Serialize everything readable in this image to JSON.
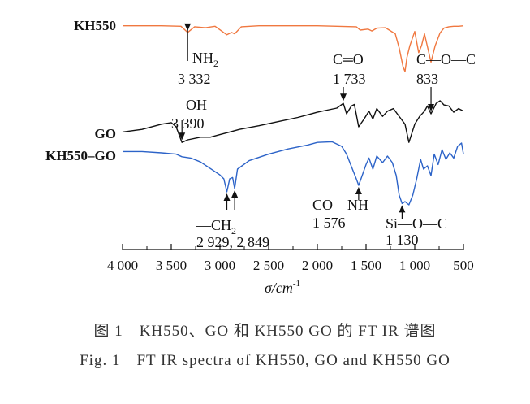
{
  "chart_data": {
    "type": "line",
    "title": "",
    "xlabel": "σ/cm",
    "xlabel_sup": "-1",
    "xlim": [
      4000,
      500
    ],
    "x_reversed": true,
    "x_ticks": [
      4000,
      3500,
      3000,
      2500,
      2000,
      1500,
      1000,
      500
    ],
    "x_tick_labels": [
      "4 000",
      "3 500",
      "3 000",
      "2 500",
      "2 000",
      "1 500",
      "1 000",
      "500"
    ],
    "grid": false,
    "series": [
      {
        "name": "KH550",
        "color": "#f07840",
        "points": [
          [
            4000,
            0.97
          ],
          [
            3800,
            0.97
          ],
          [
            3600,
            0.97
          ],
          [
            3400,
            0.96
          ],
          [
            3332,
            0.83
          ],
          [
            3260,
            0.95
          ],
          [
            3150,
            0.93
          ],
          [
            3050,
            0.96
          ],
          [
            2929,
            0.78
          ],
          [
            2880,
            0.83
          ],
          [
            2849,
            0.8
          ],
          [
            2780,
            0.95
          ],
          [
            2600,
            0.97
          ],
          [
            2400,
            0.97
          ],
          [
            2200,
            0.97
          ],
          [
            2000,
            0.97
          ],
          [
            1800,
            0.96
          ],
          [
            1600,
            0.95
          ],
          [
            1560,
            0.88
          ],
          [
            1480,
            0.9
          ],
          [
            1440,
            0.86
          ],
          [
            1390,
            0.92
          ],
          [
            1300,
            0.93
          ],
          [
            1200,
            0.8
          ],
          [
            1160,
            0.5
          ],
          [
            1120,
            0.1
          ],
          [
            1100,
            0.0
          ],
          [
            1080,
            0.3
          ],
          [
            1050,
            0.55
          ],
          [
            1000,
            0.85
          ],
          [
            960,
            0.4
          ],
          [
            930,
            0.55
          ],
          [
            900,
            0.8
          ],
          [
            833,
            0.2
          ],
          [
            790,
            0.55
          ],
          [
            740,
            0.82
          ],
          [
            700,
            0.92
          ],
          [
            650,
            0.95
          ],
          [
            600,
            0.96
          ],
          [
            550,
            0.96
          ],
          [
            500,
            0.97
          ]
        ]
      },
      {
        "name": "GO",
        "color": "#111111",
        "points": [
          [
            4000,
            0.4
          ],
          [
            3800,
            0.45
          ],
          [
            3600,
            0.55
          ],
          [
            3500,
            0.58
          ],
          [
            3450,
            0.5
          ],
          [
            3390,
            0.2
          ],
          [
            3330,
            0.25
          ],
          [
            3200,
            0.3
          ],
          [
            3100,
            0.3
          ],
          [
            3000,
            0.35
          ],
          [
            2900,
            0.4
          ],
          [
            2800,
            0.45
          ],
          [
            2600,
            0.52
          ],
          [
            2400,
            0.6
          ],
          [
            2200,
            0.68
          ],
          [
            2000,
            0.78
          ],
          [
            1900,
            0.82
          ],
          [
            1800,
            0.86
          ],
          [
            1733,
            0.95
          ],
          [
            1700,
            0.75
          ],
          [
            1650,
            0.9
          ],
          [
            1620,
            0.93
          ],
          [
            1576,
            0.5
          ],
          [
            1520,
            0.65
          ],
          [
            1470,
            0.8
          ],
          [
            1430,
            0.65
          ],
          [
            1390,
            0.85
          ],
          [
            1330,
            0.7
          ],
          [
            1280,
            0.8
          ],
          [
            1220,
            0.85
          ],
          [
            1180,
            0.75
          ],
          [
            1100,
            0.55
          ],
          [
            1060,
            0.2
          ],
          [
            1000,
            0.55
          ],
          [
            950,
            0.7
          ],
          [
            900,
            0.8
          ],
          [
            870,
            0.9
          ],
          [
            833,
            0.75
          ],
          [
            780,
            0.95
          ],
          [
            740,
            1.0
          ],
          [
            700,
            0.92
          ],
          [
            650,
            0.9
          ],
          [
            600,
            0.78
          ],
          [
            550,
            0.85
          ],
          [
            500,
            0.8
          ]
        ]
      },
      {
        "name": "KH550–GO",
        "color": "#2c63c8",
        "points": [
          [
            4000,
            0.82
          ],
          [
            3800,
            0.82
          ],
          [
            3600,
            0.8
          ],
          [
            3450,
            0.78
          ],
          [
            3390,
            0.74
          ],
          [
            3300,
            0.72
          ],
          [
            3200,
            0.66
          ],
          [
            3100,
            0.56
          ],
          [
            3000,
            0.46
          ],
          [
            2960,
            0.4
          ],
          [
            2929,
            0.2
          ],
          [
            2900,
            0.4
          ],
          [
            2870,
            0.42
          ],
          [
            2849,
            0.25
          ],
          [
            2820,
            0.55
          ],
          [
            2700,
            0.68
          ],
          [
            2500,
            0.78
          ],
          [
            2300,
            0.86
          ],
          [
            2100,
            0.92
          ],
          [
            2000,
            0.96
          ],
          [
            1850,
            0.97
          ],
          [
            1750,
            0.9
          ],
          [
            1700,
            0.78
          ],
          [
            1640,
            0.55
          ],
          [
            1600,
            0.4
          ],
          [
            1576,
            0.3
          ],
          [
            1540,
            0.45
          ],
          [
            1500,
            0.62
          ],
          [
            1470,
            0.72
          ],
          [
            1430,
            0.55
          ],
          [
            1390,
            0.75
          ],
          [
            1330,
            0.65
          ],
          [
            1280,
            0.75
          ],
          [
            1230,
            0.65
          ],
          [
            1190,
            0.45
          ],
          [
            1160,
            0.15
          ],
          [
            1130,
            0.02
          ],
          [
            1100,
            0.05
          ],
          [
            1060,
            0.0
          ],
          [
            1020,
            0.15
          ],
          [
            980,
            0.4
          ],
          [
            940,
            0.7
          ],
          [
            910,
            0.55
          ],
          [
            870,
            0.6
          ],
          [
            833,
            0.45
          ],
          [
            800,
            0.78
          ],
          [
            760,
            0.62
          ],
          [
            720,
            0.85
          ],
          [
            680,
            0.7
          ],
          [
            640,
            0.8
          ],
          [
            600,
            0.72
          ],
          [
            560,
            0.9
          ],
          [
            520,
            0.95
          ],
          [
            500,
            0.78
          ]
        ]
      }
    ],
    "annotations": [
      {
        "text": "—NH",
        "sub": "2",
        "value": "3 332",
        "x": 3332,
        "series": "KH550"
      },
      {
        "text": "C═O",
        "value": "1 733",
        "x": 1733,
        "series": "GO"
      },
      {
        "text": "C—O—C",
        "value": "833",
        "x": 833,
        "series": "GO"
      },
      {
        "text": "—OH",
        "value": "3 390",
        "x": 3390,
        "series": "GO"
      },
      {
        "text": "—CH",
        "sub": "2",
        "value": "2 929, 2 849",
        "x": [
          2929,
          2849
        ],
        "series": "KH550–GO"
      },
      {
        "text": "CO—NH",
        "value": "1 576",
        "x": 1576,
        "series": "KH550–GO"
      },
      {
        "text": "Si—O—C",
        "value": "1 130",
        "x": 1130,
        "series": "KH550–GO"
      }
    ]
  },
  "caption": {
    "zh": "图 1　KH550、GO 和 KH550 GO 的 FT IR 谱图",
    "en": "Fig. 1　FT IR spectra of KH550, GO and KH550 GO"
  }
}
